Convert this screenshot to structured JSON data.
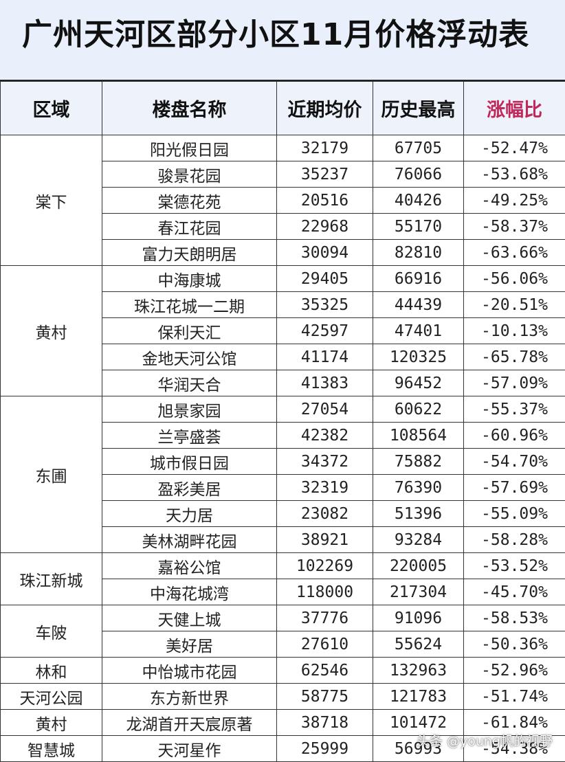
{
  "title": "广州天河区部分小区11月价格浮动表",
  "colors": {
    "accent": "#b8255a",
    "header_bg": "#eef3fb"
  },
  "headers": [
    "区域",
    "楼盘名称",
    "近期均价",
    "历史最高",
    "涨幅比"
  ],
  "groups": [
    {
      "region": "棠下",
      "rows": [
        [
          "阳光假日园",
          "32179",
          "67705",
          "-52.47%"
        ],
        [
          "骏景花园",
          "35237",
          "76066",
          "-53.68%"
        ],
        [
          "棠德花苑",
          "20516",
          "40426",
          "-49.25%"
        ],
        [
          "春江花园",
          "22968",
          "55170",
          "-58.37%"
        ],
        [
          "富力天朗明居",
          "30094",
          "82810",
          "-63.66%"
        ]
      ]
    },
    {
      "region": "黄村",
      "rows": [
        [
          "中海康城",
          "29405",
          "66916",
          "-56.06%"
        ],
        [
          "珠江花城一二期",
          "35325",
          "44439",
          "-20.51%"
        ],
        [
          "保利天汇",
          "42597",
          "47401",
          "-10.13%"
        ],
        [
          "金地天河公馆",
          "41174",
          "120325",
          "-65.78%"
        ],
        [
          "华润天合",
          "41383",
          "96452",
          "-57.09%"
        ]
      ]
    },
    {
      "region": "东圃",
      "rows": [
        [
          "旭景家园",
          "27054",
          "60622",
          "-55.37%"
        ],
        [
          "兰亭盛荟",
          "42382",
          "108564",
          "-60.96%"
        ],
        [
          "城市假日园",
          "34372",
          "75882",
          "-54.70%"
        ],
        [
          "盈彩美居",
          "32319",
          "76390",
          "-57.69%"
        ],
        [
          "天力居",
          "23082",
          "51396",
          "-55.09%"
        ],
        [
          "美林湖畔花园",
          "38921",
          "93284",
          "-58.28%"
        ]
      ]
    },
    {
      "region": "珠江新城",
      "rows": [
        [
          "嘉裕公馆",
          "102269",
          "220005",
          "-53.52%"
        ],
        [
          "中海花城湾",
          "118000",
          "217304",
          "-45.70%"
        ]
      ]
    },
    {
      "region": "车陂",
      "rows": [
        [
          "天健上城",
          "37776",
          "91096",
          "-58.53%"
        ],
        [
          "美好居",
          "27610",
          "55624",
          "-50.36%"
        ]
      ]
    },
    {
      "region": "林和",
      "rows": [
        [
          "中怡城市花园",
          "62546",
          "132963",
          "-52.96%"
        ]
      ]
    },
    {
      "region": "天河公园",
      "rows": [
        [
          "东方新世界",
          "58775",
          "121783",
          "-51.74%"
        ]
      ]
    },
    {
      "region": "黄村",
      "rows": [
        [
          "龙湖首开天宸原著",
          "38718",
          "101472",
          "-61.84%"
        ]
      ]
    },
    {
      "region": "智慧城",
      "rows": [
        [
          "天河星作",
          "25999",
          "56993",
          "-54.38%"
        ]
      ]
    }
  ],
  "watermark": "头条 @young帆的视野"
}
